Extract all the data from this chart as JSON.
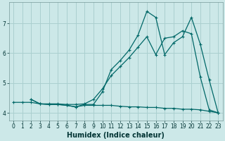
{
  "xlabel": "Humidex (Indice chaleur)",
  "bg_color": "#cce8e8",
  "grid_color": "#aacfcf",
  "line_color": "#006868",
  "xlim": [
    -0.5,
    23.5
  ],
  "ylim": [
    3.75,
    7.7
  ],
  "yticks": [
    4,
    5,
    6,
    7
  ],
  "xticks": [
    0,
    1,
    2,
    3,
    4,
    5,
    6,
    7,
    8,
    9,
    10,
    11,
    12,
    13,
    14,
    15,
    16,
    17,
    18,
    19,
    20,
    21,
    22,
    23
  ],
  "line1_x": [
    0,
    1,
    2,
    3,
    4,
    5,
    6,
    7,
    8,
    9,
    10,
    11,
    12,
    13,
    14,
    15,
    16,
    17,
    18,
    19,
    20,
    21,
    22,
    23
  ],
  "line1_y": [
    4.35,
    4.35,
    4.35,
    4.3,
    4.28,
    4.28,
    4.25,
    4.2,
    4.25,
    4.25,
    4.25,
    4.25,
    4.22,
    4.2,
    4.2,
    4.18,
    4.18,
    4.15,
    4.15,
    4.12,
    4.12,
    4.1,
    4.05,
    4.0
  ],
  "line2_x": [
    2,
    3,
    4,
    5,
    6,
    7,
    8,
    9,
    10,
    11,
    12,
    13,
    14,
    15,
    16,
    17,
    18,
    19,
    20,
    21,
    22,
    23
  ],
  "line2_y": [
    4.45,
    4.3,
    4.3,
    4.3,
    4.28,
    4.28,
    4.3,
    4.45,
    4.8,
    5.25,
    5.55,
    5.85,
    6.2,
    6.55,
    5.95,
    6.5,
    6.55,
    6.75,
    6.65,
    5.2,
    4.1,
    4.0
  ],
  "line3_x": [
    2,
    3,
    4,
    5,
    6,
    7,
    8,
    9,
    10,
    11,
    12,
    13,
    14,
    15,
    16,
    17,
    18,
    19,
    20,
    21,
    22,
    23
  ],
  "line3_y": [
    4.45,
    4.3,
    4.28,
    4.28,
    4.25,
    4.2,
    4.28,
    4.28,
    4.7,
    5.45,
    5.75,
    6.1,
    6.6,
    7.4,
    7.2,
    5.95,
    6.35,
    6.55,
    7.2,
    6.3,
    5.1,
    4.0
  ],
  "markersize": 3,
  "linewidth": 0.9,
  "xlabel_fontsize": 7,
  "tick_fontsize": 5.5
}
